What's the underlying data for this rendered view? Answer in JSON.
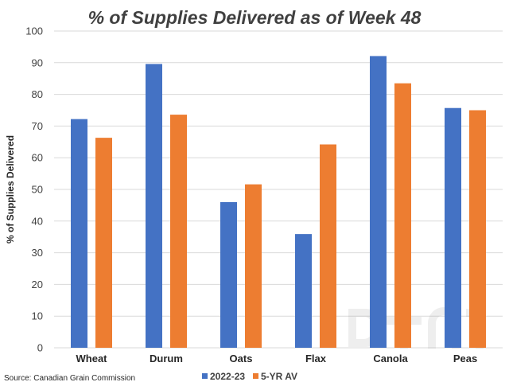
{
  "chart_data": {
    "type": "bar",
    "title": "% of Supplies Delivered as of Week 48",
    "ylabel": "% of Supplies Delivered",
    "xlabel": "",
    "ylim": [
      0,
      100
    ],
    "yticks": [
      0,
      10,
      20,
      30,
      40,
      50,
      60,
      70,
      80,
      90,
      100
    ],
    "categories": [
      "Wheat",
      "Durum",
      "Oats",
      "Flax",
      "Canola",
      "Peas"
    ],
    "series": [
      {
        "name": "2022-23",
        "color": "#4472C4",
        "values": [
          72.2,
          89.6,
          46.0,
          35.9,
          92.1,
          75.7
        ]
      },
      {
        "name": "5-YR AV",
        "color": "#ED7D31",
        "values": [
          66.3,
          73.6,
          51.6,
          64.2,
          83.5,
          75.0
        ]
      }
    ],
    "grid": true,
    "legend_position": "bottom",
    "source": "Source: Canadian Grain Commission",
    "watermark": "DTN"
  }
}
